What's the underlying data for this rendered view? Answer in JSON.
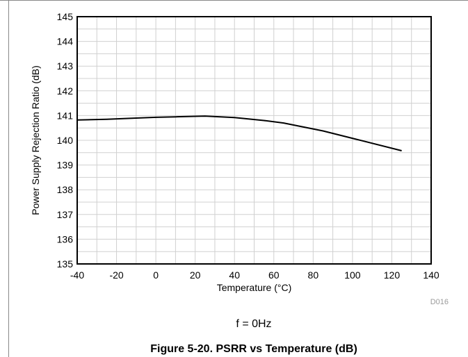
{
  "chart_data": {
    "type": "line",
    "xlabel": "Temperature (°C)",
    "ylabel": "Power Supply Rejection Ratio (dB)",
    "xlim": [
      -40,
      140
    ],
    "ylim": [
      135,
      145
    ],
    "x_ticks": [
      "-40",
      "-20",
      "0",
      "20",
      "40",
      "60",
      "80",
      "100",
      "120",
      "140"
    ],
    "y_ticks": [
      "135",
      "136",
      "137",
      "138",
      "139",
      "140",
      "141",
      "142",
      "143",
      "144",
      "145"
    ],
    "grid": true,
    "series": [
      {
        "x": [
          -40,
          -25,
          -10,
          0,
          10,
          25,
          40,
          55,
          65,
          85,
          105,
          125
        ],
        "y": [
          140.82,
          140.85,
          140.9,
          140.93,
          140.95,
          140.98,
          140.92,
          140.8,
          140.7,
          140.38,
          139.98,
          139.58
        ]
      }
    ],
    "line_color": "#000000",
    "grid_color": "#d0d0d0"
  },
  "figure": {
    "code": "D016",
    "condition": "f = 0Hz",
    "caption": "Figure 5-20. PSRR vs Temperature (dB)"
  }
}
